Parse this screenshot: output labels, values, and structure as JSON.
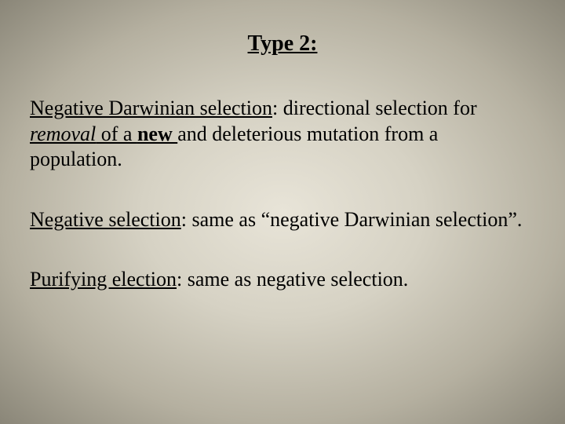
{
  "slide": {
    "background": {
      "gradient_type": "radial",
      "stops": [
        "#e8e4d8",
        "#d6d2c4",
        "#b5b0a0",
        "#8a8678"
      ]
    },
    "title": {
      "text": "Type 2:",
      "fontsize": 28,
      "bold": true,
      "underline": true,
      "align": "center"
    },
    "paragraphs": [
      {
        "runs": {
          "r0": "Negative Darwinian selection",
          "r1": ": directional selection for ",
          "r2": "removal",
          "r3": " of a ",
          "r4": "new ",
          "r5": "and deleterious mutation from a population."
        }
      },
      {
        "runs": {
          "r0": "Negative selection",
          "r1": ": same as “negative Darwinian selection”."
        }
      },
      {
        "runs": {
          "r0": "Purifying election",
          "r1": ": same as negative selection."
        }
      }
    ],
    "typography": {
      "body_fontsize": 26,
      "font_family": "Times New Roman",
      "text_color": "#000000"
    }
  }
}
